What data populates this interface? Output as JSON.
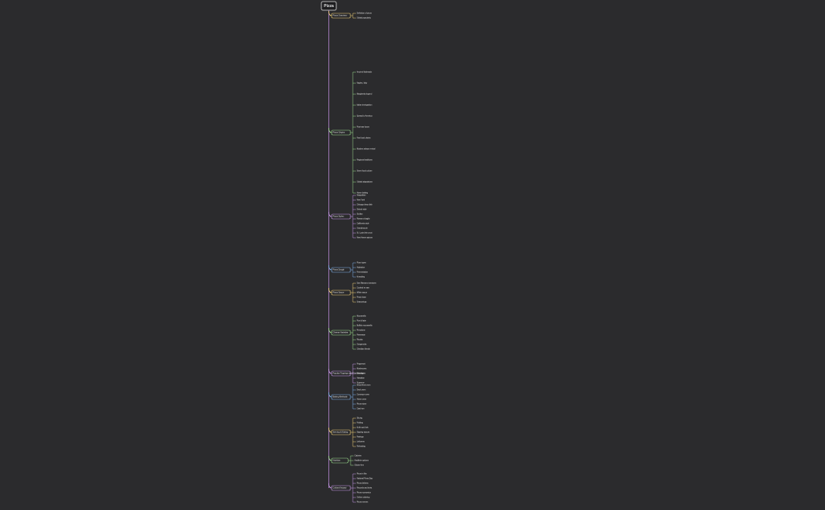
{
  "root": "Pizza",
  "branches": [
    {
      "label": "Pizza Overview",
      "children": [
        "Definition of pizza",
        "Global popularity"
      ]
    },
    {
      "label": "Pizza Origins",
      "children": [
        "Ancient flatbreads",
        "Naples, Italy",
        "Margherita legend",
        "Italian immigration",
        "Spread to America",
        "Post-war boom",
        "Fast food chains",
        "Modern artisan revival",
        "Regional traditions",
        "Street food culture",
        "Global adaptations",
        "Home baking"
      ]
    },
    {
      "label": "Pizza Styles",
      "children": [
        "Neapolitan",
        "New York",
        "Chicago deep dish",
        "Detroit style",
        "Sicilian",
        "Roman al taglio",
        "California style",
        "Grandma pie",
        "St. Louis thin crust",
        "New Haven apizza"
      ]
    },
    {
      "label": "Pizza Dough",
      "children": [
        "Flour types",
        "Hydration",
        "Fermentation",
        "Kneading"
      ]
    },
    {
      "label": "Pizza Sauce",
      "children": [
        "San Marzano tomatoes",
        "Cooked vs raw",
        "White sauce",
        "Pesto base",
        "Seasonings"
      ]
    },
    {
      "label": "Cheese Varieties",
      "children": [
        "Mozzarella",
        "Fior di latte",
        "Buffalo mozzarella",
        "Provolone",
        "Parmesan",
        "Ricotta",
        "Gorgonzola",
        "Cheddar blends"
      ]
    },
    {
      "label": "Popular Toppings and Combinations",
      "children": [
        "Pepperoni",
        "Mushrooms",
        "Sausage",
        "Hawaiian",
        "Supreme"
      ]
    },
    {
      "label": "Baking Methods",
      "children": [
        "Wood-fired oven",
        "Deck oven",
        "Conveyor oven",
        "Home oven",
        "Pizza stone",
        "Cast iron"
      ]
    },
    {
      "label": "Serving & Eating",
      "children": [
        "Slicing",
        "Folding",
        "Knife and fork",
        "Dipping sauces",
        "Pairings",
        "Leftovers",
        "Reheating"
      ]
    },
    {
      "label": "Nutrition",
      "children": [
        "Calories",
        "Healthier options",
        "Gluten-free"
      ]
    },
    {
      "label": "Cultural Impact",
      "children": [
        "Pizza in film",
        "National Pizza Day",
        "Pizza delivery",
        "Records and trivia",
        "Pizza economics",
        "Online ordering",
        "Pizza memes"
      ]
    }
  ]
}
